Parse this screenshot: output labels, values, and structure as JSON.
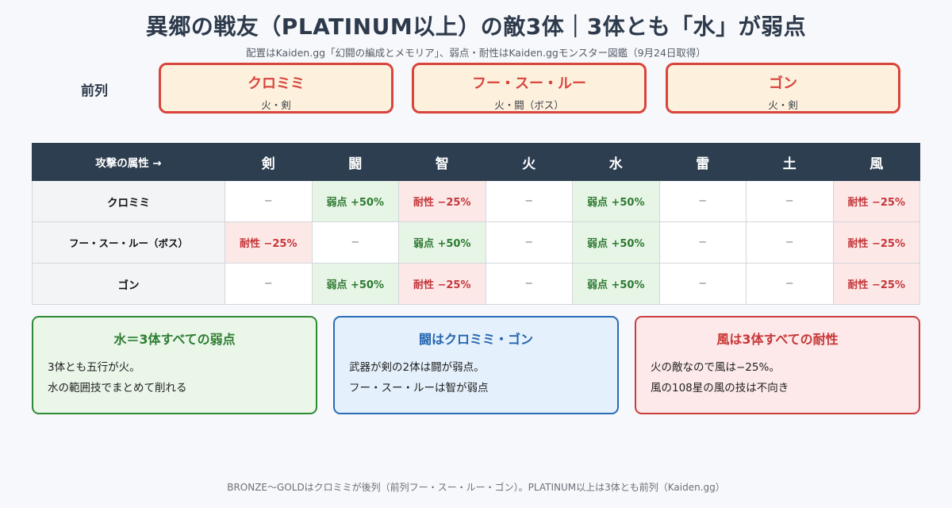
{
  "title": "異郷の戦友（PLATINUM以上）の敵3体｜3体とも「水」が弱点",
  "subtitle": "配置はKaiden.gg「幻闘の編成とメモリア」、弱点・耐性はKaiden.ggモンスター図鑑（9月24日取得）",
  "front_row_label": "前列",
  "enemies": [
    {
      "name": "クロミミ",
      "attr": "火・剣"
    },
    {
      "name": "フー・スー・ルー",
      "attr": "火・闘（ボス）"
    },
    {
      "name": "ゴン",
      "attr": "火・剣"
    }
  ],
  "table": {
    "corner": "攻撃の属性 →",
    "columns": [
      "剣",
      "闘",
      "智",
      "火",
      "水",
      "雷",
      "土",
      "風"
    ],
    "rows": [
      {
        "name": "クロミミ",
        "cells": [
          "−",
          "弱点 +50%",
          "耐性 −25%",
          "−",
          "弱点 +50%",
          "−",
          "−",
          "耐性 −25%"
        ]
      },
      {
        "name": "フー・スー・ルー（ボス）",
        "cells": [
          "耐性 −25%",
          "−",
          "弱点 +50%",
          "−",
          "弱点 +50%",
          "−",
          "−",
          "耐性 −25%"
        ]
      },
      {
        "name": "ゴン",
        "cells": [
          "−",
          "弱点 +50%",
          "耐性 −25%",
          "−",
          "弱点 +50%",
          "−",
          "−",
          "耐性 −25%"
        ]
      }
    ]
  },
  "notes": [
    {
      "heading": "水＝3体すべての弱点",
      "lines": [
        "3体とも五行が火。",
        "水の範囲技でまとめて削れる"
      ]
    },
    {
      "heading": "闘はクロミミ・ゴン",
      "lines": [
        "武器が剣の2体は闘が弱点。",
        "フー・スー・ルーは智が弱点"
      ]
    },
    {
      "heading": "風は3体すべての耐性",
      "lines": [
        "火の敵なので風は−25%。",
        "風の108星の風の技は不向き"
      ]
    }
  ],
  "footer": "BRONZE〜GOLDはクロミミが後列（前列フー・スー・ルー・ゴン）。PLATINUM以上は3体とも前列（Kaiden.gg）",
  "colors": {
    "header_bg": "#2d3e50",
    "weak_bg": "#e7f5e6",
    "weak_text": "#2d7a32",
    "resist_bg": "#fde8e8",
    "resist_text": "#c4373a",
    "enemy_border": "#d8453d",
    "enemy_bg": "#fdf1de"
  }
}
